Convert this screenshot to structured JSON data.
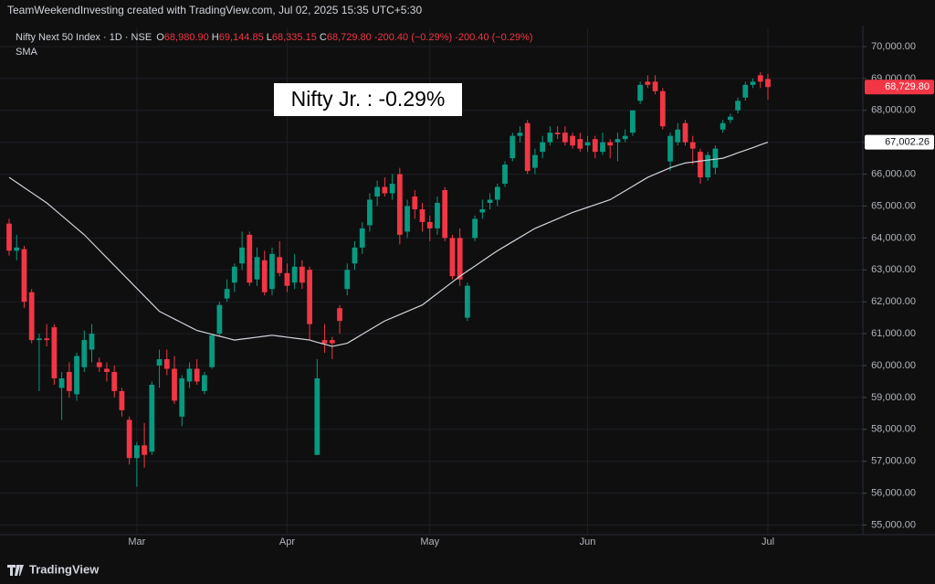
{
  "header": "TeamWeekendInvesting created with TradingView.com, Jul 02, 2025 15:35 UTC+5:30",
  "footer": "TradingView",
  "chart_data": {
    "type": "candlestick",
    "symbol": "Nifty Next 50 Index · 1D · NSE",
    "ohlc_legend": {
      "open_label": "O",
      "open": "68,980.90",
      "high_label": "H",
      "high": "69,144.85",
      "low_label": "L",
      "low": "68,335.15",
      "close_label": "C",
      "close": "68,729.80",
      "change": "-200.40 (−0.29%)",
      "change2": "-200.40 (−0.29%)"
    },
    "annotation": "Nifty Jr. : -0.29%",
    "up_color": "#089981",
    "down_color": "#f23645",
    "ylim": [
      54700,
      70600
    ],
    "yticks": [
      {
        "value": 55000,
        "label": "55,000.00"
      },
      {
        "value": 56000,
        "label": "56,000.00"
      },
      {
        "value": 57000,
        "label": "57,000.00"
      },
      {
        "value": 58000,
        "label": "58,000.00"
      },
      {
        "value": 59000,
        "label": "59,000.00"
      },
      {
        "value": 60000,
        "label": "60,000.00"
      },
      {
        "value": 61000,
        "label": "61,000.00"
      },
      {
        "value": 62000,
        "label": "62,000.00"
      },
      {
        "value": 63000,
        "label": "63,000.00"
      },
      {
        "value": 64000,
        "label": "64,000.00"
      },
      {
        "value": 65000,
        "label": "65,000.00"
      },
      {
        "value": 66000,
        "label": "66,000.00"
      },
      {
        "value": 67000,
        "label": "67,000.00"
      },
      {
        "value": 68000,
        "label": "68,000.00"
      },
      {
        "value": 69000,
        "label": "69,000.00"
      },
      {
        "value": 70000,
        "label": "70,000.00"
      }
    ],
    "grid": true,
    "last_price": {
      "value": 68729.8,
      "label": "68,729.80"
    },
    "sma_price": {
      "value": 67002.26,
      "label": "67,002.26"
    },
    "categories": [
      null,
      null,
      null,
      null,
      null,
      null,
      null,
      null,
      null,
      null,
      null,
      null,
      null,
      null,
      null,
      null,
      null,
      "Mar",
      null,
      null,
      null,
      null,
      null,
      null,
      null,
      null,
      null,
      null,
      null,
      null,
      null,
      null,
      null,
      null,
      null,
      null,
      null,
      "Apr",
      null,
      null,
      null,
      null,
      null,
      null,
      null,
      null,
      null,
      null,
      null,
      null,
      null,
      null,
      null,
      null,
      null,
      null,
      "May",
      null,
      null,
      null,
      null,
      null,
      null,
      null,
      null,
      null,
      null,
      null,
      null,
      null,
      null,
      null,
      null,
      null,
      null,
      null,
      null,
      "Jun",
      null,
      null,
      null,
      null,
      null,
      null,
      null,
      null,
      null,
      null,
      null,
      null,
      null,
      null,
      null,
      null,
      null,
      null,
      null,
      null,
      null,
      null,
      null,
      "Jul"
    ],
    "series": [
      {
        "name": "Nifty Next 50 Index",
        "open": [
          64450,
          63600,
          63650,
          62300,
          60800,
          60850,
          61200,
          59300,
          59800,
          59100,
          59950,
          60500,
          60100,
          59900,
          59800,
          59200,
          58300,
          57100,
          57500,
          57300,
          60000,
          60200,
          59900,
          58400,
          59500,
          59900,
          59200,
          59950,
          61000,
          62100,
          62600,
          63200,
          64100,
          62700,
          63300,
          62400,
          63400,
          62900,
          62600,
          63100,
          63000,
          57200,
          60800,
          60800,
          61800,
          62400,
          63200,
          63700,
          64400,
          65300,
          65600,
          65400,
          66000,
          64200,
          65300,
          64900,
          64500,
          64300,
          65500,
          64000,
          64000,
          61500,
          64000,
          64800,
          65100,
          65200,
          65700,
          66500,
          67200,
          67600,
          66200,
          66700,
          67000,
          67300,
          67300,
          67200,
          67100,
          66900,
          67100,
          66700,
          67000,
          67000,
          67100,
          67300,
          68300,
          68900,
          68900,
          68600,
          66400,
          67000,
          67600,
          67000,
          66700,
          65900,
          66200,
          67400,
          67700,
          68000,
          68400,
          68800,
          69100,
          68980.9
        ],
        "high": [
          64600,
          64100,
          63750,
          62400,
          61000,
          61300,
          61300,
          59800,
          60100,
          60400,
          61100,
          61300,
          60250,
          60100,
          60000,
          59300,
          58400,
          57600,
          58200,
          59500,
          60500,
          60500,
          60300,
          59700,
          60100,
          60200,
          59800,
          61000,
          62000,
          62700,
          63200,
          64200,
          64200,
          63700,
          63600,
          63700,
          63900,
          63200,
          63500,
          63300,
          63100,
          60200,
          61300,
          60900,
          61900,
          63200,
          63900,
          64500,
          65400,
          65800,
          65900,
          66000,
          66200,
          65200,
          65500,
          65100,
          64700,
          65300,
          65600,
          64100,
          64300,
          62600,
          64700,
          65200,
          65400,
          65700,
          66400,
          67300,
          67500,
          67700,
          66800,
          67200,
          67500,
          67500,
          67500,
          67300,
          67300,
          67200,
          67200,
          67300,
          67100,
          67300,
          67400,
          68000,
          68900,
          69100,
          69100,
          68700,
          67300,
          67600,
          67700,
          67200,
          66800,
          66700,
          66900,
          67700,
          67900,
          68400,
          68900,
          69000,
          69200,
          69144.85
        ],
        "low": [
          63450,
          63300,
          61800,
          60700,
          59200,
          60600,
          59400,
          58300,
          59000,
          58900,
          59800,
          60100,
          59800,
          59500,
          59000,
          58400,
          56900,
          56200,
          56800,
          57200,
          59300,
          59700,
          58800,
          58100,
          59300,
          59400,
          59100,
          59900,
          60950,
          62000,
          62300,
          63000,
          62500,
          62500,
          62200,
          62200,
          62800,
          62300,
          62400,
          62400,
          60800,
          57200,
          60400,
          60200,
          61000,
          62200,
          63000,
          63500,
          64200,
          65000,
          65300,
          65200,
          63800,
          64000,
          64600,
          64200,
          63900,
          64100,
          63900,
          62700,
          62500,
          61400,
          63900,
          64600,
          64900,
          65000,
          65600,
          66400,
          67000,
          66000,
          66000,
          66500,
          66900,
          67100,
          66900,
          66800,
          66700,
          66700,
          66500,
          66600,
          66500,
          66400,
          67000,
          67200,
          68200,
          68700,
          68500,
          67400,
          66100,
          66900,
          66900,
          66300,
          65700,
          65800,
          66000,
          67300,
          67600,
          67900,
          68300,
          68700,
          68700,
          68335.15
        ],
        "close": [
          63600,
          63700,
          62000,
          60800,
          60850,
          60800,
          59600,
          59600,
          59200,
          60300,
          60800,
          61000,
          59950,
          59800,
          59200,
          58600,
          57100,
          57500,
          57200,
          59400,
          60200,
          59900,
          58900,
          59600,
          59900,
          59500,
          59700,
          60950,
          61900,
          62400,
          63100,
          63700,
          62600,
          63400,
          62300,
          63500,
          62900,
          62500,
          63100,
          62600,
          61300,
          59600,
          60700,
          60700,
          61400,
          63000,
          63700,
          64300,
          65200,
          65600,
          65400,
          65700,
          64100,
          65000,
          64900,
          64500,
          64300,
          65100,
          64000,
          62800,
          62700,
          62500,
          64600,
          64900,
          65200,
          65600,
          66300,
          67200,
          67300,
          66100,
          66600,
          67000,
          67300,
          67250,
          67000,
          66900,
          66800,
          67000,
          66700,
          67000,
          66900,
          67100,
          67200,
          68000,
          68800,
          68800,
          68600,
          67500,
          67200,
          67400,
          67000,
          66800,
          65900,
          66600,
          66800,
          67600,
          67800,
          68300,
          68800,
          68900,
          68900,
          68729.8
        ]
      },
      {
        "name": "SMA",
        "color": "#d1d4dc",
        "values": [
          65900,
          65740,
          65580,
          65420,
          65260,
          65100,
          64900,
          64700,
          64500,
          64300,
          64100,
          63860,
          63620,
          63380,
          63140,
          62900,
          62660,
          62420,
          62180,
          61940,
          61700,
          61580,
          61460,
          61340,
          61220,
          61100,
          61040,
          60980,
          60920,
          60860,
          60800,
          60830,
          60860,
          60890,
          60920,
          60950,
          60920,
          60890,
          60860,
          60830,
          60800,
          60730,
          60670,
          60600,
          60650,
          60700,
          60840,
          60980,
          61120,
          61260,
          61400,
          61500,
          61600,
          61700,
          61800,
          61900,
          62080,
          62260,
          62440,
          62620,
          62800,
          62960,
          63120,
          63280,
          63440,
          63600,
          63740,
          63880,
          64020,
          64160,
          64300,
          64400,
          64500,
          64600,
          64700,
          64800,
          64880,
          64960,
          65040,
          65120,
          65200,
          65340,
          65480,
          65620,
          65760,
          65900,
          66000,
          66100,
          66200,
          66280,
          66350,
          66380,
          66410,
          66440,
          66470,
          66500,
          66580,
          66670,
          66750,
          66830,
          66920,
          67002
        ]
      }
    ]
  }
}
